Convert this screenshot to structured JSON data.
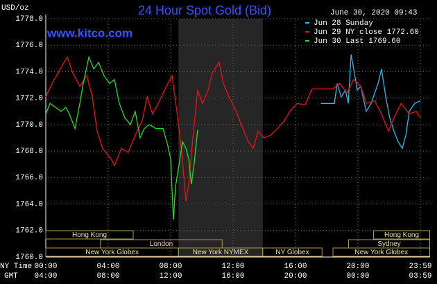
{
  "chart_data": {
    "type": "line",
    "title": "24 Hour Spot Gold (Bid)",
    "subtitle": "www.kitco.com",
    "timestamp": "June 30, 2020 09:43",
    "y_label": "USD/oz",
    "x_label": "NY Time",
    "x2_label": "GMT",
    "xlim": [
      0,
      24
    ],
    "ylim": [
      1760,
      1778
    ],
    "yticks": [
      {
        "value": 1760,
        "label": "1760.0"
      },
      {
        "value": 1762,
        "label": "1762.0"
      },
      {
        "value": 1764,
        "label": "1764.0"
      },
      {
        "value": 1766,
        "label": "1766.0"
      },
      {
        "value": 1768,
        "label": "1768.0"
      },
      {
        "value": 1770,
        "label": "1770.0"
      },
      {
        "value": 1772,
        "label": "1772.0"
      },
      {
        "value": 1774,
        "label": "1774.0"
      },
      {
        "value": 1776,
        "label": "1776.0"
      },
      {
        "value": 1778,
        "label": "1778.0"
      }
    ],
    "xticks": [
      {
        "value": 0,
        "label": "00:00"
      },
      {
        "value": 4,
        "label": "04:00"
      },
      {
        "value": 8,
        "label": "08:00"
      },
      {
        "value": 12,
        "label": "12:00"
      },
      {
        "value": 16,
        "label": "16:00"
      },
      {
        "value": 20,
        "label": "20:00"
      },
      {
        "value": 24,
        "label": "23:59"
      }
    ],
    "x2ticks": [
      {
        "value": 0,
        "label": "04:00"
      },
      {
        "value": 4,
        "label": "08:00"
      },
      {
        "value": 8,
        "label": "12:00"
      },
      {
        "value": 12,
        "label": "16:00"
      },
      {
        "value": 16,
        "label": "20:00"
      },
      {
        "value": 20,
        "label": "00:00"
      },
      {
        "value": 24,
        "label": "03:59"
      }
    ],
    "grid": true,
    "highlight": [
      8.5,
      13.9
    ],
    "sessions": [
      [
        {
          "label": "Hong Kong",
          "start": 0,
          "end": 5.6
        },
        {
          "label": "Hong Kong",
          "start": 21.0,
          "end": 24.6
        }
      ],
      [
        {
          "label": "London",
          "start": 3.5,
          "end": 11.3
        },
        {
          "label": "Sydney",
          "start": 19.4,
          "end": 24.6
        }
      ],
      [
        {
          "label": "New York Globex",
          "start": 0,
          "end": 8.5
        },
        {
          "label": "New York NYMEX",
          "start": 8.5,
          "end": 13.9
        },
        {
          "label": "NY Globex",
          "start": 13.9,
          "end": 17.7
        },
        {
          "label": "New York Globex",
          "start": 18.4,
          "end": 24.6
        }
      ]
    ],
    "series": [
      {
        "name": "Jun 28 Sunday",
        "color": "#22bbee",
        "x": [
          17.64,
          18.4,
          18.49,
          18.67,
          18.93,
          19.2,
          19.38,
          19.56,
          19.73,
          19.96,
          20.18,
          20.53,
          20.84,
          21.29,
          21.51,
          21.78,
          22.04,
          22.31,
          22.58,
          22.84,
          23.07,
          23.29,
          23.64,
          24.0
        ],
        "values": [
          1771.6,
          1771.6,
          1771.6,
          1773.1,
          1772.1,
          1772.6,
          1771.6,
          1775.3,
          1774.2,
          1772.6,
          1772.9,
          1771.0,
          1771.6,
          1773.1,
          1774.2,
          1772.1,
          1770.5,
          1769.5,
          1768.7,
          1768.2,
          1769.2,
          1771.0,
          1771.6,
          1771.8
        ]
      },
      {
        "name": "Jun 29 NY close 1772.60",
        "color": "#ee1111",
        "x": [
          0,
          0.4,
          1.07,
          1.38,
          1.73,
          2.18,
          2.62,
          2.98,
          3.29,
          3.64,
          4.18,
          4.4,
          4.84,
          5.29,
          5.73,
          6.18,
          6.49,
          6.84,
          7.29,
          7.73,
          8.09,
          8.4,
          8.71,
          8.98,
          9.16,
          9.42,
          9.73,
          10.04,
          10.4,
          10.67,
          11.11,
          11.38,
          11.73,
          12.09,
          12.53,
          12.98,
          13.29,
          13.6,
          13.96,
          14.4,
          14.84,
          15.29,
          15.64,
          16.09,
          16.62,
          17.07,
          17.73,
          18.4,
          18.84,
          19.29,
          19.73,
          20.18,
          20.53,
          21.07,
          21.51,
          21.96,
          22.31,
          22.76,
          23.29,
          23.73,
          24.0
        ],
        "values": [
          1772.1,
          1773.1,
          1774.5,
          1775.1,
          1773.9,
          1772.9,
          1773.7,
          1772.1,
          1769.5,
          1768.2,
          1767.4,
          1766.9,
          1768.2,
          1767.9,
          1769.2,
          1770.3,
          1772.1,
          1770.8,
          1771.8,
          1772.9,
          1773.7,
          1771.0,
          1767.9,
          1764.2,
          1765.5,
          1769.0,
          1772.6,
          1771.6,
          1772.6,
          1773.9,
          1774.7,
          1773.1,
          1772.1,
          1771.3,
          1770.0,
          1768.7,
          1768.2,
          1769.5,
          1769.0,
          1769.2,
          1769.7,
          1770.3,
          1771.0,
          1771.6,
          1771.5,
          1772.7,
          1772.7,
          1772.7,
          1773.1,
          1772.4,
          1773.4,
          1772.9,
          1771.6,
          1771.8,
          1770.8,
          1769.5,
          1770.5,
          1771.6,
          1770.8,
          1771.0,
          1770.5
        ]
      },
      {
        "name": "Jun 30 Last 1769.60",
        "color": "#22dd22",
        "x": [
          0,
          0.27,
          0.62,
          0.98,
          1.29,
          1.51,
          1.87,
          2.18,
          2.4,
          2.76,
          3.07,
          3.38,
          3.73,
          4.09,
          4.4,
          4.71,
          5.07,
          5.42,
          5.73,
          6.04,
          6.31,
          6.62,
          7.07,
          7.51,
          7.82,
          8.0,
          8.18,
          8.31,
          8.53,
          8.76,
          8.98,
          9.16,
          9.33,
          9.51,
          9.73
        ],
        "values": [
          1770.8,
          1771.6,
          1771.3,
          1771.0,
          1771.3,
          1770.8,
          1769.7,
          1771.6,
          1773.1,
          1775.1,
          1774.2,
          1774.7,
          1773.7,
          1773.1,
          1773.4,
          1771.6,
          1770.5,
          1770.0,
          1771.0,
          1769.0,
          1769.7,
          1770.0,
          1769.7,
          1769.7,
          1768.4,
          1767.4,
          1762.8,
          1765.3,
          1766.9,
          1768.7,
          1768.2,
          1767.4,
          1765.5,
          1767.1,
          1769.6
        ]
      }
    ]
  }
}
